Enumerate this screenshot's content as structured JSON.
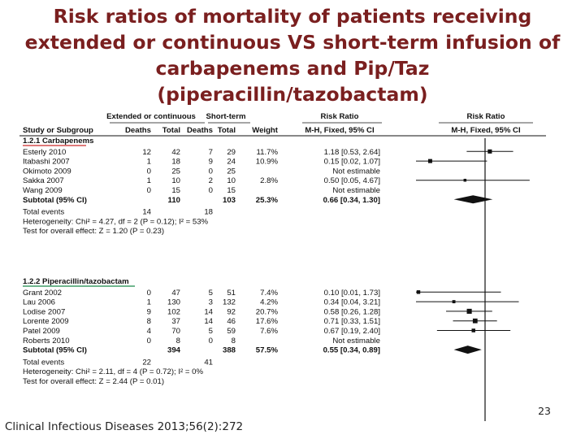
{
  "title_lines": [
    "Risk ratios of mortality of patients receiving",
    "extended or continuous VS short-term infusion of",
    "carbapenems and Pip/Taz",
    "(piperacillin/tazobactam)"
  ],
  "citation": "Clinical Infectious Diseases 2013;56(2):272",
  "page_number": "23",
  "colors": {
    "title": "#7a1f1f",
    "red_rule": "#cc2a2a",
    "green_rule": "#1a8a4a",
    "ink": "#111111"
  },
  "table": {
    "group_headers": {
      "extended": "Extended or continuous",
      "short": "Short-term",
      "rr": "Risk Ratio",
      "rr_plot": "Risk Ratio"
    },
    "column_headers": {
      "study": "Study or Subgroup",
      "deaths_e": "Deaths",
      "total_e": "Total",
      "deaths_s": "Deaths",
      "total_s": "Total",
      "weight": "Weight",
      "rr_ci": "M-H, Fixed, 95% CI",
      "rr_plot_method": "M-H, Fixed, 95% CI"
    }
  },
  "chart_data": {
    "type": "forest",
    "scale": "log",
    "groups": [
      {
        "label": "1.2.1 Carbapenems",
        "studies": [
          {
            "study": "Esterly 2010",
            "deaths_e": "12",
            "total_e": "42",
            "deaths_s": "7",
            "total_s": "29",
            "weight": "11.7%",
            "rr_text": "1.18 [0.53, 2.64]",
            "rr": 1.18,
            "lo": 0.53,
            "hi": 2.64
          },
          {
            "study": "Itabashi 2007",
            "deaths_e": "1",
            "total_e": "18",
            "deaths_s": "9",
            "total_s": "24",
            "weight": "10.9%",
            "rr_text": "0.15 [0.02, 1.07]",
            "rr": 0.15,
            "lo": 0.02,
            "hi": 1.07
          },
          {
            "study": "Okimoto 2009",
            "deaths_e": "0",
            "total_e": "25",
            "deaths_s": "0",
            "total_s": "25",
            "weight": "",
            "rr_text": "Not estimable",
            "rr": null,
            "lo": null,
            "hi": null
          },
          {
            "study": "Sakka 2007",
            "deaths_e": "1",
            "total_e": "10",
            "deaths_s": "2",
            "total_s": "10",
            "weight": "2.8%",
            "rr_text": "0.50 [0.05, 4.67]",
            "rr": 0.5,
            "lo": 0.05,
            "hi": 4.67
          },
          {
            "study": "Wang 2009",
            "deaths_e": "0",
            "total_e": "15",
            "deaths_s": "0",
            "total_s": "15",
            "weight": "",
            "rr_text": "Not estimable",
            "rr": null,
            "lo": null,
            "hi": null
          }
        ],
        "subtotal": {
          "label": "Subtotal (95% CI)",
          "total_e": "110",
          "total_s": "103",
          "weight": "25.3%",
          "rr_text": "0.66 [0.34, 1.30]",
          "rr": 0.66,
          "lo": 0.34,
          "hi": 1.3
        },
        "total_events": {
          "label": "Total events",
          "events_e": "14",
          "events_s": "18"
        },
        "heterogeneity": "Heterogeneity: Chi² = 4.27, df = 2 (P = 0.12); I² = 53%",
        "overall_effect": "Test for overall effect: Z = 1.20 (P = 0.23)"
      },
      {
        "label": "1.2.2 Piperacillin/tazobactam",
        "studies": [
          {
            "study": "Grant 2002",
            "deaths_e": "0",
            "total_e": "47",
            "deaths_s": "5",
            "total_s": "51",
            "weight": "7.4%",
            "rr_text": "0.10 [0.01, 1.73]",
            "rr": 0.1,
            "lo": 0.01,
            "hi": 1.73
          },
          {
            "study": "Lau 2006",
            "deaths_e": "1",
            "total_e": "130",
            "deaths_s": "3",
            "total_s": "132",
            "weight": "4.2%",
            "rr_text": "0.34 [0.04, 3.21]",
            "rr": 0.34,
            "lo": 0.04,
            "hi": 3.21
          },
          {
            "study": "Lodise 2007",
            "deaths_e": "9",
            "total_e": "102",
            "deaths_s": "14",
            "total_s": "92",
            "weight": "20.7%",
            "rr_text": "0.58 [0.26, 1.28]",
            "rr": 0.58,
            "lo": 0.26,
            "hi": 1.28
          },
          {
            "study": "Lorente 2009",
            "deaths_e": "8",
            "total_e": "37",
            "deaths_s": "14",
            "total_s": "46",
            "weight": "17.6%",
            "rr_text": "0.71 [0.33, 1.51]",
            "rr": 0.71,
            "lo": 0.33,
            "hi": 1.51
          },
          {
            "study": "Patel 2009",
            "deaths_e": "4",
            "total_e": "70",
            "deaths_s": "5",
            "total_s": "59",
            "weight": "7.6%",
            "rr_text": "0.67 [0.19, 2.40]",
            "rr": 0.67,
            "lo": 0.19,
            "hi": 2.4
          },
          {
            "study": "Roberts 2010",
            "deaths_e": "0",
            "total_e": "8",
            "deaths_s": "0",
            "total_s": "8",
            "weight": "",
            "rr_text": "Not estimable",
            "rr": null,
            "lo": null,
            "hi": null
          }
        ],
        "subtotal": {
          "label": "Subtotal (95% CI)",
          "total_e": "394",
          "total_s": "388",
          "weight": "57.5%",
          "rr_text": "0.55 [0.34, 0.89]",
          "rr": 0.55,
          "lo": 0.34,
          "hi": 0.89
        },
        "total_events": {
          "label": "Total events",
          "events_e": "22",
          "events_s": "41"
        },
        "heterogeneity": "Heterogeneity: Chi² = 2.11, df = 4 (P = 0.72); I² = 0%",
        "overall_effect": "Test for overall effect: Z = 2.44 (P = 0.01)"
      }
    ]
  }
}
